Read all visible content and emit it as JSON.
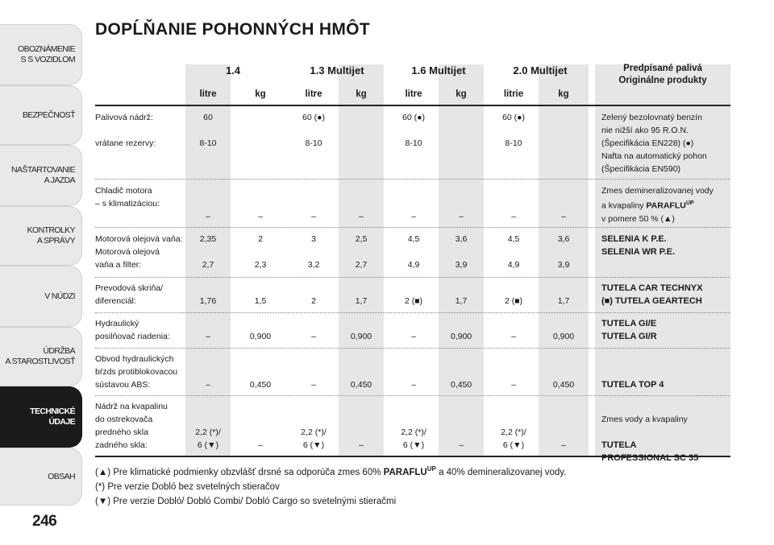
{
  "sidebar": {
    "tabs": [
      {
        "label": "OBOZNÁMENIE\nS S VOZIDLOM",
        "active": false
      },
      {
        "label": "BEZPEČNOSŤ",
        "active": false
      },
      {
        "label": "NAŠTARTOVANIE\nA JAZDA",
        "active": false
      },
      {
        "label": "KONTROLKY\nA SPRÁVY",
        "active": false
      },
      {
        "label": "V NÚDZI",
        "active": false
      },
      {
        "label": "ÚDRŽBA\nA STAROSTLIVOSŤ",
        "active": false
      },
      {
        "label": "TECHNICKÉ\nÚDAJE",
        "active": true
      },
      {
        "label": "OBSAH",
        "active": false
      }
    ]
  },
  "page_number": "246",
  "title": "DOPĹŇANIE POHONNÝCH HMÔT",
  "header": {
    "engines": [
      "1.4",
      "1.3 Multijet",
      "1.6 Multijet",
      "2.0 Multijet"
    ],
    "units": [
      "litre",
      "kg",
      "litre",
      "kg",
      "litre",
      "kg",
      "litrie",
      "kg"
    ],
    "right_line1": "Predpísané palivá",
    "right_line2": "Originálne produkty"
  },
  "rows": {
    "fuel": {
      "label": "Palivová nádrž:\n\nvrátane rezervy:",
      "c": [
        "60\n\n8-10",
        "",
        "60 (●)\n\n8-10",
        "",
        "60 (●)\n\n8-10",
        "",
        "60 (●)\n\n8-10",
        ""
      ],
      "product": "Zelený bezolovnatý benzín\nnie nižší ako 95 R.O.N.\n(Špecifikácia EN228) (●)\nNafta na automatický pohon\n(Špecifikácia EN590)"
    },
    "cooler": {
      "label": "Chladič motora\n– s klimatizáciou:",
      "c": [
        "–",
        "–",
        "–",
        "–",
        "–",
        "–",
        "–",
        "–"
      ],
      "product_pre": "Zmes demineralizovanej vody\na kvapaliny ",
      "product_brand": "PARAFLU",
      "product_sup": "UP",
      "product_post": "\nv pomere 50 % (▲)"
    },
    "oil": {
      "label": "Motorová olejová vaňa:\nMotorová olejová\nvaňa a filter:",
      "c": [
        "2,35\n\n2,7",
        "2\n\n2,3",
        "3\n\n3,2",
        "2,5\n\n2,7",
        "4,5\n\n4,9",
        "3,6\n\n3,9",
        "4,5\n\n4,9",
        "3,6\n\n3,9"
      ],
      "product": "SELENIA K P.E.\nSELENIA WR P.E."
    },
    "gearbox": {
      "label": "Prevodová skriňa/\ndiferenciál:",
      "c": [
        "1,76",
        "1,5",
        "2",
        "1,7",
        "2 (■)",
        "1,7",
        "2 (■)",
        "1,7"
      ],
      "product": "TUTELA CAR TECHNYX\n(■) TUTELA GEARTECH"
    },
    "steering": {
      "label": "Hydraulický\nposilňovač riadenia:",
      "c": [
        "–",
        "0,900",
        "–",
        "0,900",
        "–",
        "0,900",
        "–",
        "0,900"
      ],
      "product": "TUTELA GI/E\nTUTELA GI/R"
    },
    "brakes": {
      "label": "Obvod hydraulických\nbŕzds protiblokovacou\nsústavou ABS:",
      "c": [
        "–",
        "0,450",
        "–",
        "0,450",
        "–",
        "0,450",
        "–",
        "0,450"
      ],
      "product": "TUTELA TOP 4"
    },
    "washer": {
      "label": "Nádrž na kvapalinu\ndo ostrekovača\npredného skla\nzadného skla:",
      "c": [
        "2,2 (*)/\n6 (▼)",
        "–",
        "2,2 (*)/\n6 (▼)",
        "–",
        "2,2 (*)/\n6 (▼)",
        "–",
        "2,2 (*)/\n6 (▼)",
        "–"
      ],
      "product_line1": "Zmes vody a kvapaliny",
      "product_line2": "TUTELA\nPROFESSIONAL SC 35"
    }
  },
  "notes": {
    "n1_pre": "(▲) Pre klimatické podmienky obzvlášť drsné sa odporúča zmes 60% ",
    "n1_brand": "PARAFLU",
    "n1_sup": "UP",
    "n1_post": " a 40% demineralizovanej vody.",
    "n2": "(*) Pre verzie Dobló bez svetelných stieračov",
    "n3": "(▼) Pre verzie Dobló/ Dobló Combi/ Dobló Cargo so svetelnými stieračmi"
  }
}
